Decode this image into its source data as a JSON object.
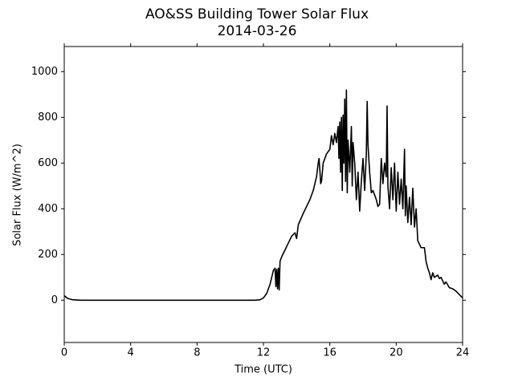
{
  "chart_data": {
    "type": "line",
    "title": "AO&SS Building Tower Solar Flux",
    "subtitle": "2014-03-26",
    "x_label": "Time (UTC)",
    "y_label": "Solar Flux (W/m^2)",
    "xlim": [
      0,
      24
    ],
    "xticks": [
      0,
      4,
      8,
      12,
      16,
      20,
      24
    ],
    "ylim": [
      -185,
      1110
    ],
    "yticks": [
      0,
      200,
      400,
      600,
      800,
      1000
    ],
    "grid": false,
    "series": [
      {
        "color": "#000000",
        "x": [
          0,
          0.2,
          0.5,
          1,
          11.5,
          11.8,
          12.0,
          12.2,
          12.4,
          12.6,
          12.7,
          12.75,
          12.8,
          12.85,
          12.9,
          12.95,
          13.0,
          13.1,
          13.3,
          13.5,
          13.7,
          13.9,
          14.0,
          14.1,
          14.4,
          14.8,
          15.0,
          15.2,
          15.3,
          15.35,
          15.4,
          15.45,
          15.5,
          15.6,
          15.8,
          16.0,
          16.1,
          16.2,
          16.3,
          16.4,
          16.5,
          16.55,
          16.6,
          16.65,
          16.7,
          16.75,
          16.8,
          16.85,
          16.9,
          16.95,
          17.0,
          17.05,
          17.1,
          17.2,
          17.3,
          17.35,
          17.4,
          17.5,
          17.6,
          17.7,
          17.8,
          17.9,
          18.0,
          18.1,
          18.2,
          18.25,
          18.3,
          18.4,
          18.5,
          18.6,
          18.8,
          18.9,
          19.0,
          19.1,
          19.2,
          19.3,
          19.4,
          19.45,
          19.5,
          19.6,
          19.7,
          19.8,
          19.9,
          20.0,
          20.1,
          20.2,
          20.3,
          20.4,
          20.5,
          20.55,
          20.6,
          20.7,
          20.8,
          20.9,
          21.0,
          21.1,
          21.2,
          21.3,
          21.5,
          21.7,
          21.8,
          21.9,
          22.0,
          22.1,
          22.2,
          22.3,
          22.5,
          22.6,
          22.7,
          22.9,
          23.0,
          23.2,
          23.4,
          23.6,
          23.8,
          24
        ],
        "values": [
          20,
          8,
          2,
          0,
          0,
          2,
          10,
          30,
          70,
          130,
          140,
          60,
          135,
          50,
          140,
          45,
          170,
          190,
          220,
          250,
          280,
          295,
          270,
          330,
          380,
          440,
          480,
          540,
          600,
          620,
          570,
          510,
          520,
          600,
          640,
          660,
          720,
          680,
          730,
          690,
          760,
          620,
          780,
          560,
          800,
          480,
          810,
          600,
          880,
          520,
          920,
          470,
          700,
          560,
          760,
          500,
          690,
          600,
          440,
          560,
          390,
          520,
          620,
          480,
          640,
          870,
          680,
          560,
          470,
          480,
          440,
          410,
          420,
          620,
          510,
          600,
          540,
          850,
          500,
          400,
          580,
          440,
          600,
          390,
          560,
          420,
          530,
          400,
          660,
          370,
          500,
          340,
          450,
          330,
          490,
          320,
          400,
          260,
          230,
          230,
          170,
          140,
          120,
          90,
          120,
          100,
          110,
          95,
          100,
          70,
          80,
          55,
          50,
          40,
          25,
          10
        ]
      }
    ]
  }
}
